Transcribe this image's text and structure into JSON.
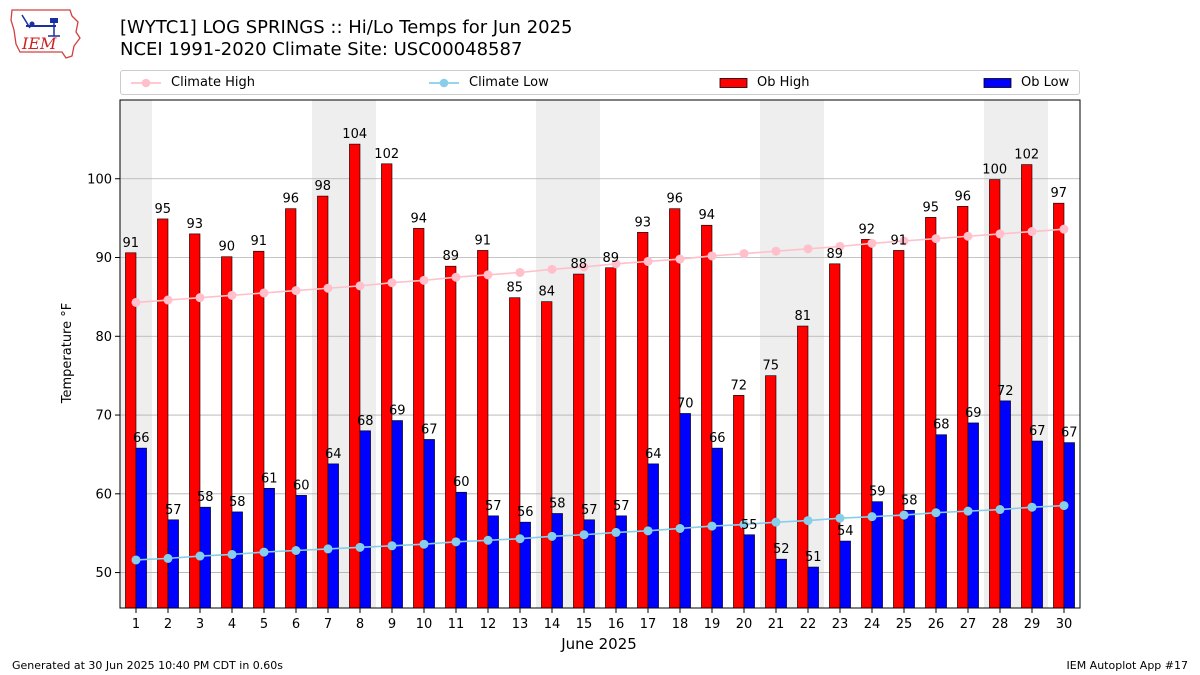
{
  "header": {
    "title_line1": "[WYTC1] LOG SPRINGS :: Hi/Lo Temps for Jun 2025",
    "title_line2": "NCEI 1991-2020 Climate Site: USC00048587"
  },
  "logo": {
    "text": "IEM",
    "icon": "iem-iowa-logo-icon"
  },
  "footer": {
    "generated": "Generated at 30 Jun 2025 10:40 PM CDT in 0.60s",
    "app": "IEM Autoplot App #17"
  },
  "colors": {
    "ob_high": "#ff0000",
    "ob_low": "#0000ff",
    "climate_high": "#ffc0cb",
    "climate_low": "#87ceeb",
    "weekend_band": "#eeeeee",
    "grid": "#b0b0b0"
  },
  "chart_data": {
    "type": "bar",
    "title": "[WYTC1] LOG SPRINGS :: Hi/Lo Temps for Jun 2025",
    "subtitle": "NCEI 1991-2020 Climate Site: USC00048587",
    "xlabel": "June 2025",
    "ylabel": "Temperature °F",
    "ylim": [
      45.5,
      110
    ],
    "yticks": [
      50,
      60,
      70,
      80,
      90,
      100
    ],
    "grid": "horizontal",
    "legend_position": "top",
    "categories": [
      "1",
      "2",
      "3",
      "4",
      "5",
      "6",
      "7",
      "8",
      "9",
      "10",
      "11",
      "12",
      "13",
      "14",
      "15",
      "16",
      "17",
      "18",
      "19",
      "20",
      "21",
      "22",
      "23",
      "24",
      "25",
      "26",
      "27",
      "28",
      "29",
      "30"
    ],
    "shaded_days": [
      1,
      7,
      8,
      14,
      15,
      21,
      22,
      28,
      29
    ],
    "series": [
      {
        "name": "Ob High",
        "kind": "bar",
        "color": "#ff0000",
        "values": [
          90.6,
          94.9,
          93.0,
          90.1,
          90.8,
          96.2,
          97.8,
          104.4,
          101.9,
          93.7,
          88.9,
          90.9,
          84.9,
          84.4,
          87.9,
          88.7,
          93.2,
          96.2,
          94.1,
          72.5,
          75.0,
          81.3,
          89.2,
          92.3,
          90.9,
          95.1,
          96.5,
          99.9,
          101.8,
          96.9
        ],
        "labels": [
          "91",
          "95",
          "93",
          "90",
          "91",
          "96",
          "98",
          "104",
          "102",
          "94",
          "89",
          "91",
          "85",
          "84",
          "88",
          "89",
          "93",
          "96",
          "94",
          "72",
          "75",
          "81",
          "89",
          "92",
          "91",
          "95",
          "96",
          "100",
          "102",
          "97"
        ]
      },
      {
        "name": "Ob Low",
        "kind": "bar",
        "color": "#0000ff",
        "values": [
          65.8,
          56.7,
          58.3,
          57.7,
          60.7,
          59.8,
          63.8,
          68.0,
          69.3,
          66.9,
          60.2,
          57.2,
          56.4,
          57.5,
          56.7,
          57.2,
          63.8,
          70.2,
          65.8,
          54.8,
          51.7,
          50.7,
          54.0,
          59.0,
          57.9,
          67.5,
          69.0,
          71.8,
          66.7,
          66.5
        ],
        "labels": [
          "66",
          "57",
          "58",
          "58",
          "61",
          "60",
          "64",
          "68",
          "69",
          "67",
          "60",
          "57",
          "56",
          "58",
          "57",
          "57",
          "64",
          "70",
          "66",
          "55",
          "52",
          "51",
          "54",
          "59",
          "58",
          "68",
          "69",
          "72",
          "67",
          "67"
        ]
      },
      {
        "name": "Climate High",
        "kind": "line",
        "color": "#ffc0cb",
        "values": [
          84.3,
          84.6,
          84.9,
          85.2,
          85.5,
          85.8,
          86.1,
          86.4,
          86.8,
          87.1,
          87.5,
          87.8,
          88.1,
          88.5,
          88.8,
          89.2,
          89.5,
          89.8,
          90.2,
          90.5,
          90.8,
          91.1,
          91.4,
          91.8,
          92.1,
          92.4,
          92.7,
          93.0,
          93.3,
          93.6
        ]
      },
      {
        "name": "Climate Low",
        "kind": "line",
        "color": "#87ceeb",
        "values": [
          51.6,
          51.8,
          52.1,
          52.3,
          52.6,
          52.8,
          53.0,
          53.2,
          53.4,
          53.6,
          53.9,
          54.1,
          54.3,
          54.6,
          54.8,
          55.1,
          55.3,
          55.6,
          55.9,
          56.1,
          56.4,
          56.6,
          56.9,
          57.1,
          57.3,
          57.6,
          57.8,
          58.0,
          58.3,
          58.5
        ]
      }
    ]
  }
}
